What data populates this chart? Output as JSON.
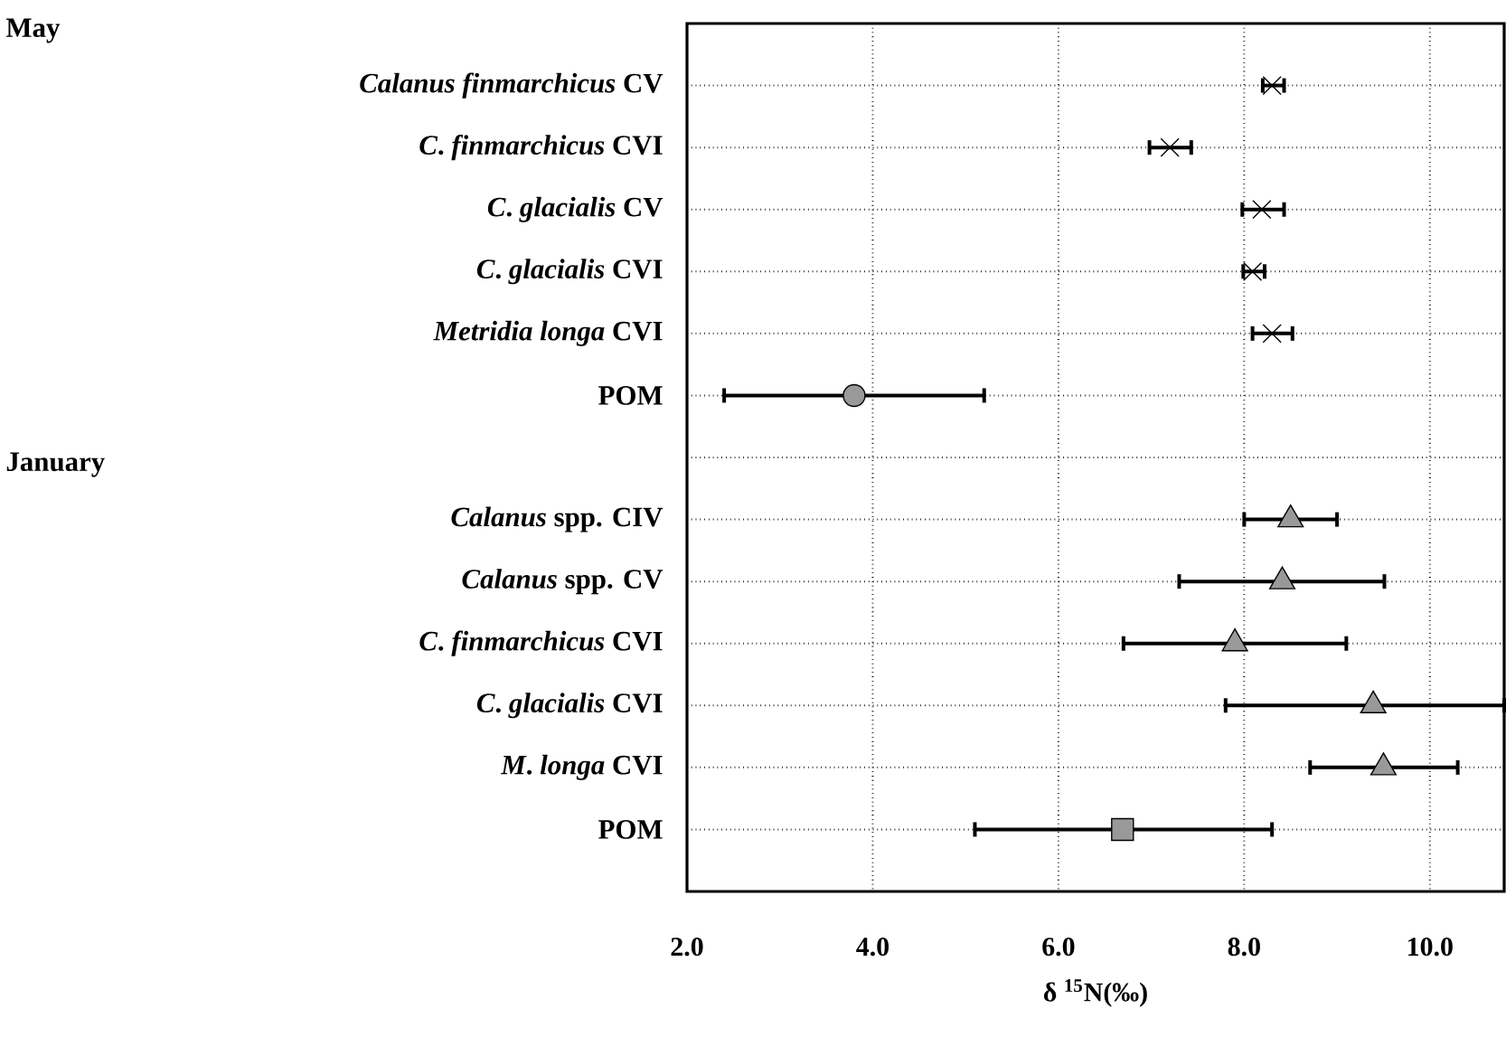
{
  "chart_data": {
    "type": "scatter",
    "orientation": "horizontal",
    "xlabel": "δ $^{15}$N(‰)",
    "annotations": [
      "May",
      "January"
    ],
    "categories": [
      null,
      "*Calanus  finmarchicus* CV",
      "*C*. *finmarchicus* CVI",
      "*C*. *glacialis* CV",
      "*C*. *glacialis* CVI",
      "*Metridia  longa* CVI",
      "POM",
      null,
      "*Calanus* spp. CIV",
      "*Calanus* spp. CV",
      "*C*. *finmarchicus* CVI",
      "*C*. *glacialis* CVI",
      "*M*. *longa* CVI",
      "POM"
    ],
    "xlim": [
      2.0,
      10.8
    ],
    "xticks": [
      {
        "value": 2,
        "label": "2.0"
      },
      {
        "value": 4,
        "label": "4.0"
      },
      {
        "value": 6,
        "label": "6.0"
      },
      {
        "value": 8,
        "label": "8.0"
      },
      {
        "value": 10,
        "label": "10.0"
      }
    ],
    "grid": true,
    "series": [
      {
        "color": "#000000",
        "marker": "cross",
        "values": [
          null,
          8.3,
          7.2,
          8.19,
          8.09,
          8.3,
          null,
          null,
          null,
          null,
          null,
          null,
          null,
          null
        ],
        "errors": [
          null,
          [
            8.2,
            8.43
          ],
          [
            6.98,
            7.43
          ],
          [
            7.98,
            8.43
          ],
          [
            7.99,
            8.22
          ],
          [
            8.09,
            8.52
          ],
          null,
          null,
          null,
          null,
          null,
          null,
          null,
          null
        ]
      },
      {
        "color": "#999999",
        "marker": "circle",
        "values": [
          null,
          null,
          null,
          null,
          null,
          null,
          3.8,
          null,
          null,
          null,
          null,
          null,
          null,
          null
        ],
        "errors": [
          null,
          null,
          null,
          null,
          null,
          null,
          [
            2.4,
            5.2
          ],
          null,
          null,
          null,
          null,
          null,
          null,
          null
        ]
      },
      {
        "color": "#999999",
        "marker": "triangle",
        "values": [
          null,
          null,
          null,
          null,
          null,
          null,
          null,
          null,
          8.5,
          8.41,
          7.9,
          9.39,
          9.5,
          null
        ],
        "errors": [
          null,
          null,
          null,
          null,
          null,
          null,
          null,
          null,
          [
            8.0,
            9.0
          ],
          [
            7.3,
            9.51
          ],
          [
            6.7,
            9.1
          ],
          [
            7.8,
            10.8
          ],
          [
            8.71,
            10.3
          ],
          null
        ]
      },
      {
        "color": "#999999",
        "marker": "square",
        "values": [
          null,
          null,
          null,
          null,
          null,
          null,
          null,
          null,
          null,
          null,
          null,
          null,
          null,
          6.69
        ],
        "errors": [
          null,
          null,
          null,
          null,
          null,
          null,
          null,
          null,
          null,
          null,
          null,
          null,
          null,
          [
            5.1,
            8.3
          ]
        ]
      }
    ]
  }
}
